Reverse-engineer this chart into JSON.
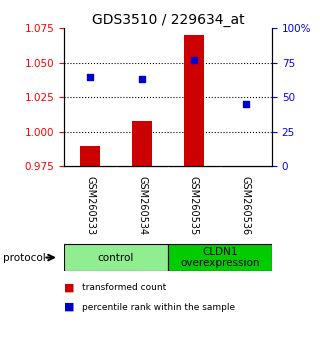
{
  "title": "GDS3510 / 229634_at",
  "samples": [
    "GSM260533",
    "GSM260534",
    "GSM260535",
    "GSM260536"
  ],
  "red_values": [
    0.99,
    1.008,
    1.07,
    0.975
  ],
  "blue_values": [
    65,
    63,
    77,
    45
  ],
  "baseline": 0.975,
  "ylim_left": [
    0.975,
    1.075
  ],
  "ylim_right": [
    0,
    100
  ],
  "yticks_left": [
    0.975,
    1.0,
    1.025,
    1.05,
    1.075
  ],
  "yticks_right": [
    0,
    25,
    50,
    75,
    100
  ],
  "groups": [
    {
      "label": "control",
      "samples": [
        0,
        1
      ],
      "color": "#90EE90"
    },
    {
      "label": "CLDN1\noverexpression",
      "samples": [
        2,
        3
      ],
      "color": "#00CC00"
    }
  ],
  "bar_color": "#CC0000",
  "dot_color": "#0000CC",
  "bg_color": "#BEBEBE",
  "protocol_label": "protocol",
  "legend_bar_label": "transformed count",
  "legend_dot_label": "percentile rank within the sample",
  "title_fontsize": 10,
  "tick_fontsize": 7.5,
  "grid_ticks": [
    1.0,
    1.025,
    1.05
  ]
}
